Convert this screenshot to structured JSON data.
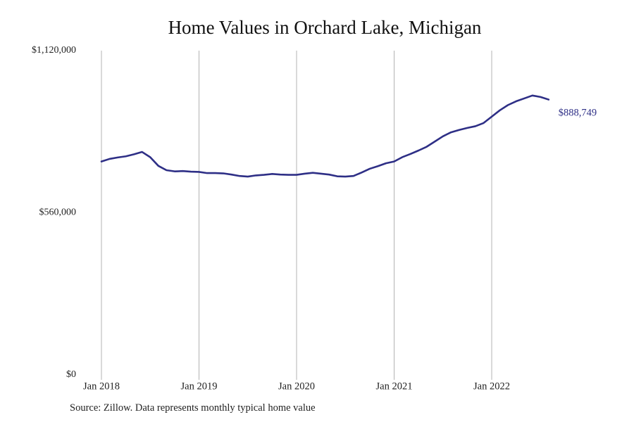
{
  "chart_data": {
    "type": "line",
    "title": "Home Values in Orchard Lake, Michigan",
    "xlabel": "",
    "ylabel": "",
    "ylim": [
      0,
      1120000
    ],
    "yticks": [
      0,
      560000,
      1120000
    ],
    "ytick_labels": [
      "$0",
      "$560,000",
      "$1,120,000"
    ],
    "xticks": [
      "2018-01",
      "2019-01",
      "2020-01",
      "2021-01",
      "2022-01"
    ],
    "xtick_labels": [
      "Jan 2018",
      "Jan 2019",
      "Jan 2020",
      "Jan 2021",
      "Jan 2022"
    ],
    "x_grid": true,
    "y_grid": false,
    "legend": "none",
    "line_color": "#2e2f86",
    "end_label": "$888,749",
    "series": [
      {
        "x": [
          "2018-01",
          "2018-02",
          "2018-03",
          "2018-04",
          "2018-05",
          "2018-06",
          "2018-07",
          "2018-08",
          "2018-09",
          "2018-10",
          "2018-11",
          "2018-12",
          "2019-01",
          "2019-02",
          "2019-03",
          "2019-04",
          "2019-05",
          "2019-06",
          "2019-07",
          "2019-08",
          "2019-09",
          "2019-10",
          "2019-11",
          "2019-12",
          "2020-01",
          "2020-02",
          "2020-03",
          "2020-04",
          "2020-05",
          "2020-06",
          "2020-07",
          "2020-08",
          "2020-09",
          "2020-10",
          "2020-11",
          "2020-12",
          "2021-01",
          "2021-02",
          "2021-03",
          "2021-04",
          "2021-05",
          "2021-06",
          "2021-07",
          "2021-08",
          "2021-09",
          "2021-10",
          "2021-11",
          "2021-12",
          "2022-01",
          "2022-02",
          "2022-03",
          "2022-04",
          "2022-05",
          "2022-06",
          "2022-07",
          "2022-08"
        ],
        "values": [
          737000,
          746000,
          751000,
          755000,
          762000,
          770000,
          752000,
          722000,
          707000,
          703000,
          704000,
          702000,
          701000,
          697000,
          697000,
          696000,
          692000,
          687000,
          685000,
          689000,
          691000,
          694000,
          692000,
          691000,
          691000,
          695000,
          698000,
          695000,
          692000,
          686000,
          685000,
          687000,
          699000,
          712000,
          721000,
          731000,
          737000,
          752000,
          763000,
          775000,
          788000,
          806000,
          824000,
          838000,
          846000,
          853000,
          859000,
          870000,
          892000,
          914000,
          932000,
          945000,
          955000,
          965000,
          960000,
          888749
        ]
      }
    ]
  },
  "source": "Source: Zillow. Data represents monthly typical home value"
}
